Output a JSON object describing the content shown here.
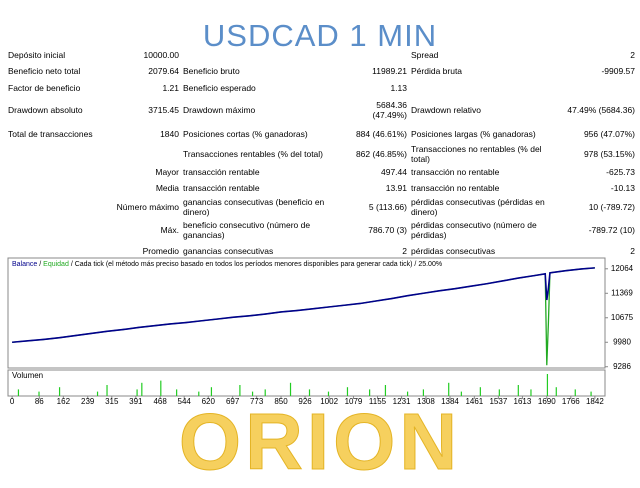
{
  "header": {
    "title": "USDCAD 1 MIN"
  },
  "table": {
    "rows": [
      [
        "Depósito inicial",
        "10000.00",
        null,
        null,
        "Spread",
        "2"
      ],
      [
        "Beneficio neto total",
        "2079.64",
        "Beneficio bruto",
        "11989.21",
        "Pérdida bruta",
        "-9909.57"
      ],
      [
        "Factor de beneficio",
        "1.21",
        "Beneficio esperado",
        "1.13",
        null,
        null
      ],
      [
        "Drawdown absoluto",
        "3715.45",
        "Drawdown máximo",
        "5684.36 (47.49%)",
        "Drawdown relativo",
        "47.49% (5684.36)"
      ],
      [
        "Total de transacciones",
        "1840",
        "Posiciones cortas (% ganadoras)",
        "884 (46.61%)",
        "Posiciones largas (% ganadoras)",
        "956 (47.07%)"
      ],
      [
        null,
        null,
        "Transacciones rentables (% del total)",
        "862 (46.85%)",
        "Transacciones no rentables (% del total)",
        "978 (53.15%)"
      ],
      [
        "Mayor",
        null,
        "transacción rentable",
        "497.44",
        "transacción no rentable",
        "-625.73"
      ],
      [
        "Media",
        null,
        "transacción rentable",
        "13.91",
        "transacción no rentable",
        "-10.13"
      ],
      [
        "Número máximo",
        null,
        "ganancias consecutivas (beneficio en dinero)",
        "5 (113.66)",
        "pérdidas consecutivas (pérdidas en dinero)",
        "10 (-789.72)"
      ],
      [
        "Máx.",
        null,
        "beneficio consecutivo (número de ganancias)",
        "786.70 (3)",
        "pérdidas consecutivo (número de pérdidas)",
        "-789.72 (10)"
      ],
      [
        "Promedio",
        null,
        "ganancias consecutivas",
        "2",
        "pérdidas consecutivas",
        "2"
      ]
    ]
  },
  "chart": {
    "type": "line",
    "legend_separator": "/",
    "note": "Cada tick (el método más preciso basado en todos los períodos menores disponibles para generar cada tick)",
    "quality": "25.00%",
    "x": [
      0,
      50,
      100,
      150,
      200,
      250,
      300,
      350,
      400,
      450,
      500,
      550,
      600,
      650,
      700,
      750,
      800,
      850,
      900,
      950,
      1000,
      1050,
      1100,
      1150,
      1200,
      1250,
      1300,
      1350,
      1400,
      1450,
      1500,
      1550,
      1600,
      1650,
      1685,
      1690,
      1695,
      1700,
      1750,
      1800,
      1842
    ],
    "series": [
      {
        "name": "Balance",
        "color": "#00008b",
        "values": [
          9980,
          10020,
          10060,
          10110,
          10170,
          10230,
          10290,
          10340,
          10400,
          10450,
          10500,
          10540,
          10590,
          10640,
          10690,
          10730,
          10780,
          10840,
          10880,
          10930,
          10980,
          11030,
          11080,
          11150,
          11220,
          11300,
          11370,
          11440,
          11500,
          11570,
          11640,
          11720,
          11800,
          11870,
          11920,
          11180,
          11500,
          11950,
          12010,
          12060,
          12090
        ]
      },
      {
        "name": "Equidad",
        "color": "#22aa22",
        "values": [
          9980,
          10020,
          10060,
          10110,
          10170,
          10230,
          10290,
          10340,
          10400,
          10450,
          10500,
          10540,
          10590,
          10640,
          10690,
          10730,
          10780,
          10840,
          10880,
          10930,
          10980,
          11030,
          11080,
          11150,
          11220,
          11300,
          11370,
          11440,
          11500,
          11570,
          11640,
          11720,
          11800,
          11870,
          11920,
          9330,
          10500,
          11950,
          12010,
          12060,
          12090
        ]
      }
    ],
    "xlim": [
      -13,
      1874
    ],
    "xticks": [
      0,
      86,
      162,
      239,
      315,
      391,
      468,
      544,
      620,
      697,
      773,
      850,
      926,
      1002,
      1079,
      1155,
      1231,
      1308,
      1384,
      1461,
      1537,
      1613,
      1690,
      1766,
      1842
    ],
    "ylim": [
      9250,
      12370
    ],
    "yticks": [
      12064,
      11369,
      10675,
      9980,
      9286
    ],
    "volume": {
      "label": "Volumen",
      "color": "#22cc22",
      "ylim": [
        0,
        10
      ],
      "x": [
        20,
        85,
        150,
        270,
        300,
        395,
        410,
        470,
        520,
        590,
        630,
        720,
        760,
        800,
        880,
        940,
        1000,
        1060,
        1130,
        1180,
        1250,
        1300,
        1380,
        1420,
        1480,
        1540,
        1600,
        1640,
        1692,
        1720,
        1780,
        1830
      ],
      "values": [
        3,
        2,
        4,
        2,
        5,
        3,
        6,
        7,
        3,
        2,
        4,
        5,
        2,
        3,
        6,
        3,
        2,
        4,
        3,
        5,
        2,
        3,
        6,
        2,
        4,
        3,
        5,
        3,
        10,
        4,
        3,
        2
      ]
    }
  },
  "footer": {
    "brand": "ORION"
  }
}
